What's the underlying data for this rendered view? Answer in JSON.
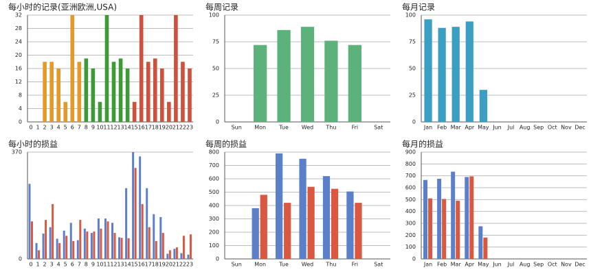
{
  "chart_data": [
    {
      "type": "bar",
      "title": "每小时的记录(亚洲欧洲,USA)",
      "categories": [
        "0",
        "1",
        "2",
        "3",
        "4",
        "5",
        "6",
        "7",
        "8",
        "9",
        "10",
        "11",
        "12",
        "13",
        "14",
        "15",
        "16",
        "17",
        "18",
        "19",
        "20",
        "21",
        "22",
        "23"
      ],
      "values": [
        0,
        0,
        18,
        18,
        16,
        6,
        32,
        18,
        19,
        16,
        6,
        32,
        18,
        19,
        16,
        6,
        32,
        18,
        19,
        16,
        6,
        32,
        18,
        16
      ],
      "colors": [
        "#e39a2c",
        "#e39a2c",
        "#e39a2c",
        "#e39a2c",
        "#e39a2c",
        "#e39a2c",
        "#e39a2c",
        "#e39a2c",
        "#3d9a36",
        "#3d9a36",
        "#3d9a36",
        "#3d9a36",
        "#3d9a36",
        "#3d9a36",
        "#3d9a36",
        "#cf503c",
        "#cf503c",
        "#cf503c",
        "#cf503c",
        "#cf503c",
        "#cf503c",
        "#cf503c",
        "#cf503c",
        "#cf503c"
      ],
      "ylim": [
        0,
        32
      ],
      "yticks": [
        0,
        4,
        8,
        12,
        16,
        20,
        24,
        28,
        32
      ],
      "grid": true
    },
    {
      "type": "bar",
      "title": "每周记录",
      "categories": [
        "Sun",
        "Mon",
        "Tue",
        "Wed",
        "Thu",
        "Fri",
        "Sat"
      ],
      "values": [
        0,
        72,
        86,
        89,
        76,
        72,
        0
      ],
      "color": "#5cb27a",
      "ylim": [
        0,
        100
      ],
      "yticks": [
        0,
        25,
        50,
        75,
        100
      ],
      "grid": true
    },
    {
      "type": "bar",
      "title": "每月记录",
      "categories": [
        "Jan",
        "Feb",
        "Mar",
        "Apr",
        "May",
        "Jun",
        "Jul",
        "Aug",
        "Sep",
        "Oct",
        "Nov",
        "Dec"
      ],
      "values": [
        96,
        88,
        89,
        94,
        30,
        0,
        0,
        0,
        0,
        0,
        0,
        0
      ],
      "color": "#3a9fc2",
      "ylim": [
        0,
        100
      ],
      "yticks": [
        0,
        25,
        50,
        75,
        100
      ],
      "grid": true
    },
    {
      "type": "grouped-bar",
      "title": "每小时的损益",
      "categories": [
        "0",
        "1",
        "2",
        "3",
        "4",
        "5",
        "6",
        "7",
        "8",
        "9",
        "10",
        "11",
        "12",
        "13",
        "14",
        "15",
        "16",
        "17",
        "18",
        "19",
        "20",
        "21",
        "22",
        "23"
      ],
      "series": [
        {
          "color": "#5b7fc8",
          "values": [
            260,
            55,
            88,
            110,
            70,
            98,
            125,
            65,
            105,
            90,
            140,
            140,
            125,
            75,
            245,
            370,
            355,
            245,
            155,
            145,
            18,
            35,
            20,
            15
          ]
        },
        {
          "color": "#d9583f",
          "values": [
            130,
            30,
            135,
            190,
            55,
            80,
            62,
            135,
            95,
            95,
            105,
            130,
            90,
            73,
            72,
            315,
            190,
            110,
            62,
            90,
            30,
            40,
            80,
            85
          ]
        }
      ],
      "ylim": [
        0,
        370
      ],
      "yticks": [
        0,
        370
      ],
      "grid": true
    },
    {
      "type": "grouped-bar",
      "title": "每周的损益",
      "categories": [
        "Sun",
        "Mon",
        "Tue",
        "Wed",
        "Thu",
        "Fri",
        "Sat"
      ],
      "series": [
        {
          "color": "#5b7fc8",
          "values": [
            0,
            380,
            790,
            750,
            620,
            505,
            0
          ]
        },
        {
          "color": "#d9583f",
          "values": [
            0,
            480,
            420,
            540,
            525,
            420,
            0
          ]
        }
      ],
      "ylim": [
        0,
        800
      ],
      "yticks": [
        0,
        100,
        200,
        300,
        400,
        500,
        600,
        700,
        800
      ],
      "grid": true
    },
    {
      "type": "grouped-bar",
      "title": "每月的损益",
      "categories": [
        "Jan",
        "Feb",
        "Mar",
        "Apr",
        "May",
        "Jun",
        "Jul",
        "Aug",
        "Sep",
        "Oct",
        "Nov",
        "Dec"
      ],
      "series": [
        {
          "color": "#5b7fc8",
          "values": [
            665,
            675,
            735,
            690,
            275,
            0,
            0,
            0,
            0,
            0,
            0,
            0
          ]
        },
        {
          "color": "#d9583f",
          "values": [
            510,
            505,
            490,
            695,
            180,
            0,
            0,
            0,
            0,
            0,
            0,
            0
          ]
        }
      ],
      "ylim": [
        0,
        900
      ],
      "yticks": [
        0,
        100,
        200,
        300,
        400,
        500,
        600,
        700,
        800,
        900
      ],
      "grid": true
    }
  ]
}
